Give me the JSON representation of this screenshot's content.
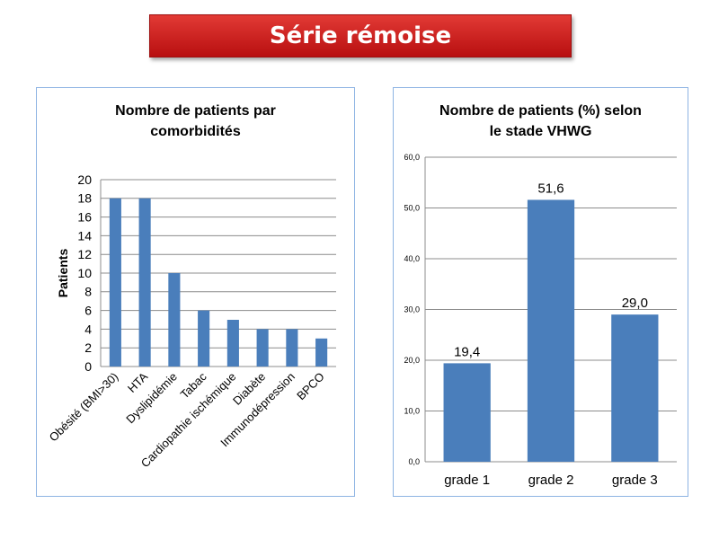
{
  "banner": {
    "title": "Série rémoise"
  },
  "colors": {
    "bar": "#4a7ebb",
    "banner": "#c0181a",
    "panel_border": "#8eb4e3"
  },
  "chart_data": [
    {
      "type": "bar",
      "title": "Nombre de patients par\ncomorbidités",
      "xlabel": "",
      "ylabel": "Patients",
      "categories": [
        "Obésité (BMI>30)",
        "HTA",
        "Dyslipidémie",
        "Tabac",
        "Cardiopathie ischémique",
        "Diabète",
        "Immunodépression",
        "BPCO"
      ],
      "values": [
        18,
        18,
        10,
        6,
        5,
        4,
        4,
        3
      ],
      "yticks": [
        "0",
        "2",
        "4",
        "6",
        "8",
        "10",
        "12",
        "14",
        "16",
        "18",
        "20"
      ],
      "ylim": [
        0,
        20
      ],
      "grid": true,
      "legend": "none"
    },
    {
      "type": "bar",
      "title": "Nombre de patients (%) selon\nle stade VHWG",
      "xlabel": "",
      "ylabel": "",
      "categories": [
        "grade 1",
        "grade 2",
        "grade 3"
      ],
      "values": [
        19.4,
        51.6,
        29.0
      ],
      "data_labels": [
        "19,4",
        "51,6",
        "29,0"
      ],
      "yticks": [
        "0,0",
        "10,0",
        "20,0",
        "30,0",
        "40,0",
        "50,0",
        "60,0"
      ],
      "ylim": [
        0,
        60
      ],
      "grid": true,
      "legend": "none"
    }
  ]
}
